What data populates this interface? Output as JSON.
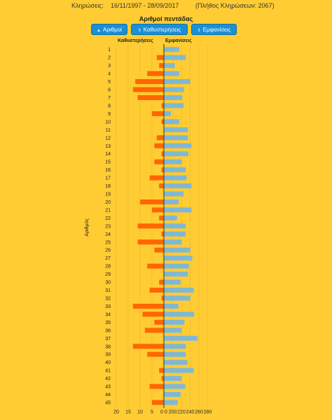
{
  "header": {
    "label": "Κληρώσεις:",
    "dates": "16/11/1997 - 28/09/2017",
    "count": "(Πλήθος Κληρώσεων: 2067)"
  },
  "colors": {
    "background": "#FFCC33",
    "delays": "#FF6600",
    "appearances": "#7FB8D4",
    "button": "#1B8FD4"
  },
  "buttons": [
    {
      "label": "Αριθμοί",
      "icon": "triangle-up-icon",
      "symbol": "▲"
    },
    {
      "label": "Καθυστερήσεις",
      "icon": "sort-icon",
      "symbol": "⇕"
    },
    {
      "label": "Εμφανίσεις",
      "icon": "sort-icon",
      "symbol": "⇕"
    }
  ],
  "chart_data": {
    "type": "bar",
    "orientation": "horizontal",
    "title": "Αριθμοί πεντάδας",
    "ylabel": "Αριθμός",
    "left_header": "Καθυστερήσεις",
    "right_header": "Εμφανίσεις",
    "categories": [
      "1",
      "2",
      "3",
      "4",
      "5",
      "6",
      "7",
      "8",
      "9",
      "10",
      "11",
      "12",
      "13",
      "14",
      "15",
      "16",
      "17",
      "18",
      "19",
      "20",
      "21",
      "22",
      "23",
      "24",
      "25",
      "26",
      "27",
      "28",
      "29",
      "30",
      "31",
      "32",
      "33",
      "34",
      "35",
      "36",
      "37",
      "38",
      "39",
      "40",
      "41",
      "42",
      "43",
      "44",
      "45"
    ],
    "series": [
      {
        "name": "Καθυστερήσεις",
        "values": [
          0,
          3,
          2,
          7,
          12,
          13,
          11,
          1,
          5,
          1,
          0,
          3,
          4,
          1,
          4,
          1,
          6,
          2,
          0,
          10,
          5,
          2,
          11,
          1,
          11,
          4,
          0,
          7,
          0,
          2,
          6,
          1,
          13,
          9,
          4,
          8,
          0,
          13,
          7,
          0,
          2,
          1,
          6,
          0,
          5
        ]
      },
      {
        "name": "Εμφανίσεις",
        "values": [
          215,
          230,
          205,
          215,
          240,
          226,
          222,
          225,
          196,
          215,
          235,
          235,
          243,
          236,
          221,
          230,
          232,
          243,
          225,
          214,
          243,
          210,
          230,
          230,
          221,
          240,
          245,
          237,
          235,
          218,
          248,
          240,
          213,
          249,
          227,
          220,
          257,
          230,
          230,
          234,
          248,
          221,
          229,
          218,
          212
        ]
      }
    ],
    "x_axis_left": {
      "range": [
        20,
        0
      ],
      "ticks": [
        "20",
        "15",
        "10",
        "5",
        "0"
      ]
    },
    "x_axis_right": {
      "range": [
        180,
        280
      ],
      "ticks": [
        "200",
        "220",
        "240",
        "260",
        "280"
      ]
    },
    "grid": true
  }
}
